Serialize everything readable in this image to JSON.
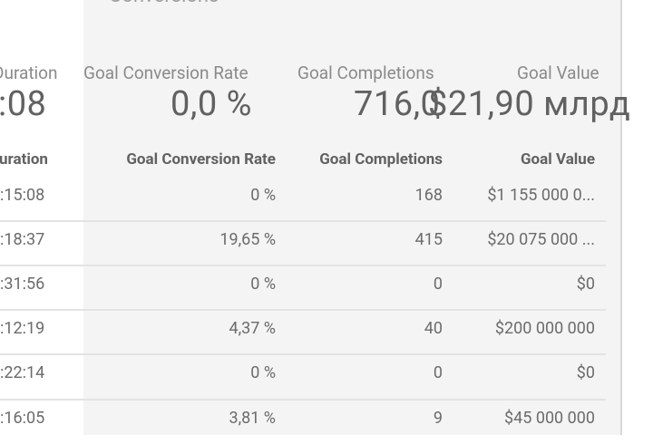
{
  "section": {
    "title": "Conversions"
  },
  "summary": {
    "duration": {
      "label": "Duration",
      "value": ":08"
    },
    "goal_conversion_rate": {
      "label": "Goal Conversion Rate",
      "value": "0,0 %"
    },
    "goal_completions": {
      "label": "Goal Completions",
      "value": "716,0"
    },
    "goal_value": {
      "label": "Goal Value",
      "value": "$21,90 млрд"
    }
  },
  "table": {
    "headers": {
      "duration": "uration",
      "goal_conversion_rate": "Goal Conversion Rate",
      "goal_completions": "Goal Completions",
      "goal_value": "Goal Value"
    },
    "rows": [
      {
        "duration": ":15:08",
        "rate": "0 %",
        "completions": "168",
        "value": "$1 155 000 0..."
      },
      {
        "duration": ":18:37",
        "rate": "19,65 %",
        "completions": "415",
        "value": "$20 075 000 ..."
      },
      {
        "duration": ":31:56",
        "rate": "0 %",
        "completions": "0",
        "value": "$0"
      },
      {
        "duration": ":12:19",
        "rate": "4,37 %",
        "completions": "40",
        "value": "$200 000 000"
      },
      {
        "duration": ":22:14",
        "rate": "0 %",
        "completions": "0",
        "value": "$0"
      },
      {
        "duration": ":16:05",
        "rate": "3,81 %",
        "completions": "9",
        "value": "$45 000 000"
      }
    ]
  }
}
